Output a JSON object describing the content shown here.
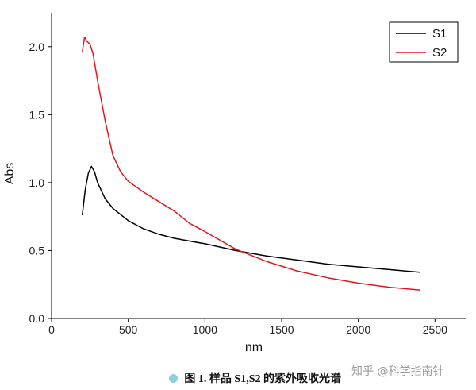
{
  "chart_data": {
    "type": "line",
    "xlabel": "nm",
    "ylabel": "Abs",
    "xlim": [
      0,
      2700
    ],
    "ylim": [
      0,
      2.25
    ],
    "xticks": [
      0,
      500,
      1000,
      1500,
      2000,
      2500
    ],
    "yticks": [
      0.0,
      0.5,
      1.0,
      1.5,
      2.0
    ],
    "xtick_labels": [
      "0",
      "500",
      "1000",
      "1500",
      "2000",
      "2500"
    ],
    "ytick_labels": [
      "0.0",
      "0.5",
      "1.0",
      "1.5",
      "2.0"
    ],
    "grid": false,
    "legend_position": "top-right",
    "series": [
      {
        "name": "S1",
        "color": "#000000",
        "x": [
          200,
          220,
          240,
          260,
          280,
          300,
          350,
          400,
          500,
          600,
          700,
          800,
          900,
          1000,
          1200,
          1400,
          1600,
          1800,
          2000,
          2200,
          2400
        ],
        "y": [
          0.76,
          0.95,
          1.07,
          1.12,
          1.08,
          1.0,
          0.88,
          0.81,
          0.72,
          0.66,
          0.62,
          0.59,
          0.57,
          0.55,
          0.5,
          0.46,
          0.43,
          0.4,
          0.38,
          0.36,
          0.34
        ]
      },
      {
        "name": "S2",
        "color": "#e8141c",
        "x": [
          200,
          215,
          230,
          250,
          270,
          300,
          350,
          400,
          450,
          500,
          600,
          700,
          800,
          900,
          1000,
          1200,
          1400,
          1600,
          1800,
          2000,
          2200,
          2400
        ],
        "y": [
          1.96,
          2.07,
          2.04,
          2.02,
          1.95,
          1.75,
          1.45,
          1.2,
          1.08,
          1.01,
          0.93,
          0.86,
          0.79,
          0.7,
          0.64,
          0.51,
          0.42,
          0.35,
          0.3,
          0.26,
          0.23,
          0.21
        ]
      }
    ]
  },
  "caption": {
    "text": "图 1.  样品 S1,S2 的紫外吸收光谱",
    "dot_color": "#8ecfdc"
  },
  "watermark": "知乎 @科学指南针"
}
